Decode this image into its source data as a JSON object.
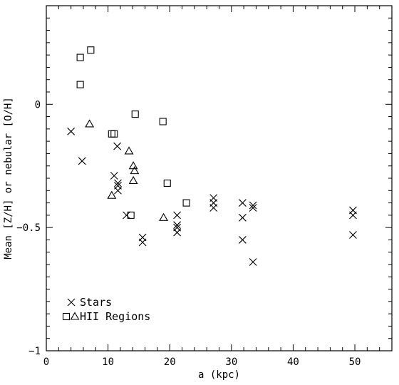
{
  "chart_data": {
    "type": "scatter",
    "xlabel": "a (kpc)",
    "ylabel": "Mean [Z/H] or nebular [O/H]",
    "xlim": [
      0,
      56
    ],
    "ylim": [
      -1,
      0.4
    ],
    "x_ticks": [
      0,
      10,
      20,
      30,
      40,
      50
    ],
    "y_ticks": [
      -1,
      -0.5,
      0
    ],
    "x_tick_labels": [
      "0",
      "10",
      "20",
      "30",
      "40",
      "50"
    ],
    "y_tick_labels": [
      "−1",
      "−0.5",
      "0"
    ],
    "legend_position": "bottom-left",
    "grid": false,
    "series": [
      {
        "name": "Stars",
        "marker": "x",
        "points": [
          [
            4.0,
            -0.11
          ],
          [
            5.8,
            -0.23
          ],
          [
            11.0,
            -0.29
          ],
          [
            11.5,
            -0.17
          ],
          [
            11.6,
            -0.32
          ],
          [
            11.6,
            -0.33
          ],
          [
            11.6,
            -0.35
          ],
          [
            13.0,
            -0.45
          ],
          [
            15.6,
            -0.54
          ],
          [
            15.6,
            -0.56
          ],
          [
            21.2,
            -0.45
          ],
          [
            21.2,
            -0.49
          ],
          [
            21.2,
            -0.5
          ],
          [
            21.2,
            -0.52
          ],
          [
            27.1,
            -0.38
          ],
          [
            27.1,
            -0.4
          ],
          [
            27.1,
            -0.42
          ],
          [
            31.8,
            -0.4
          ],
          [
            31.8,
            -0.46
          ],
          [
            31.8,
            -0.55
          ],
          [
            33.5,
            -0.41
          ],
          [
            33.5,
            -0.42
          ],
          [
            33.5,
            -0.64
          ],
          [
            49.7,
            -0.43
          ],
          [
            49.7,
            -0.45
          ],
          [
            49.7,
            -0.53
          ]
        ]
      },
      {
        "name": "HII Regions",
        "marker": "square",
        "points": [
          [
            5.5,
            0.19
          ],
          [
            5.5,
            0.08
          ],
          [
            7.2,
            0.22
          ],
          [
            10.6,
            -0.12
          ],
          [
            11.0,
            -0.12
          ],
          [
            14.4,
            -0.04
          ],
          [
            18.9,
            -0.07
          ],
          [
            19.6,
            -0.32
          ],
          [
            22.7,
            -0.4
          ],
          [
            13.7,
            -0.45
          ]
        ]
      },
      {
        "name": "HII Regions",
        "marker": "triangle",
        "points": [
          [
            7.0,
            -0.08
          ],
          [
            13.4,
            -0.19
          ],
          [
            14.1,
            -0.25
          ],
          [
            14.3,
            -0.27
          ],
          [
            14.1,
            -0.31
          ],
          [
            10.6,
            -0.37
          ],
          [
            19.0,
            -0.46
          ]
        ]
      }
    ]
  }
}
